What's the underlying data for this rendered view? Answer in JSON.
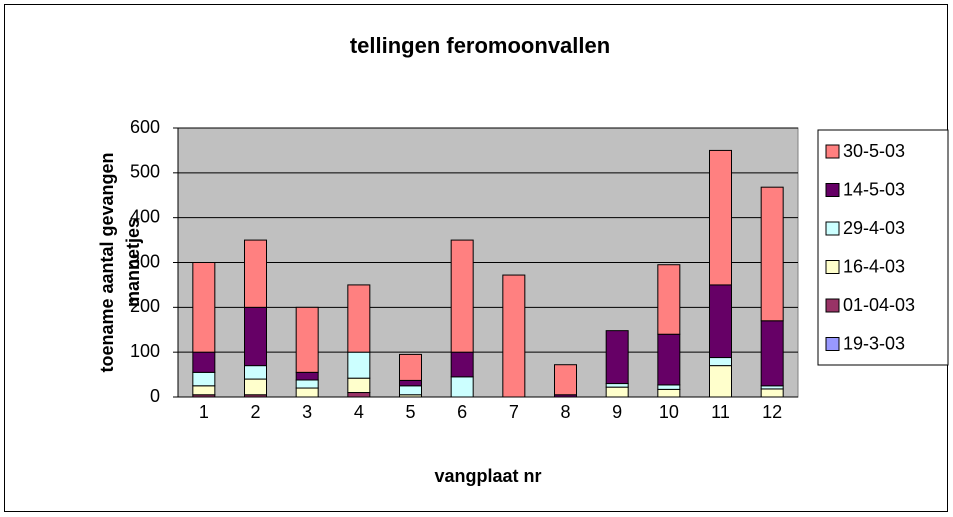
{
  "chart_data": {
    "type": "stacked_bar",
    "title": "tellingen feromoonvallen",
    "xlabel": "vangplaat nr",
    "ylabel": [
      "toename aantal gevangen",
      "mannetjes"
    ],
    "categories": [
      "1",
      "2",
      "3",
      "4",
      "5",
      "6",
      "7",
      "8",
      "9",
      "10",
      "11",
      "12"
    ],
    "series": [
      {
        "name": "19-3-03",
        "color": "#9999ff",
        "values": [
          0,
          0,
          0,
          0,
          0,
          0,
          0,
          0,
          0,
          0,
          0,
          0
        ]
      },
      {
        "name": "01-04-03",
        "color": "#993366",
        "values": [
          5,
          5,
          0,
          10,
          0,
          0,
          0,
          0,
          0,
          0,
          0,
          0
        ]
      },
      {
        "name": "16-4-03",
        "color": "#ffffcc",
        "values": [
          20,
          35,
          20,
          32,
          5,
          0,
          0,
          0,
          22,
          17,
          70,
          18
        ]
      },
      {
        "name": "29-4-03",
        "color": "#ccffff",
        "values": [
          30,
          30,
          18,
          58,
          20,
          45,
          0,
          0,
          8,
          10,
          18,
          7
        ]
      },
      {
        "name": "14-5-03",
        "color": "#660066",
        "values": [
          45,
          130,
          17,
          0,
          12,
          55,
          0,
          5,
          118,
          113,
          162,
          145
        ]
      },
      {
        "name": "30-5-03",
        "color": "#ff8080",
        "values": [
          200,
          150,
          145,
          150,
          58,
          250,
          272,
          67,
          0,
          155,
          300,
          298
        ]
      }
    ],
    "ylim": [
      0,
      600
    ],
    "yticks": [
      0,
      100,
      200,
      300,
      400,
      500,
      600
    ],
    "grid": true,
    "legend": "right",
    "plot_background": "#c0c0c0"
  }
}
